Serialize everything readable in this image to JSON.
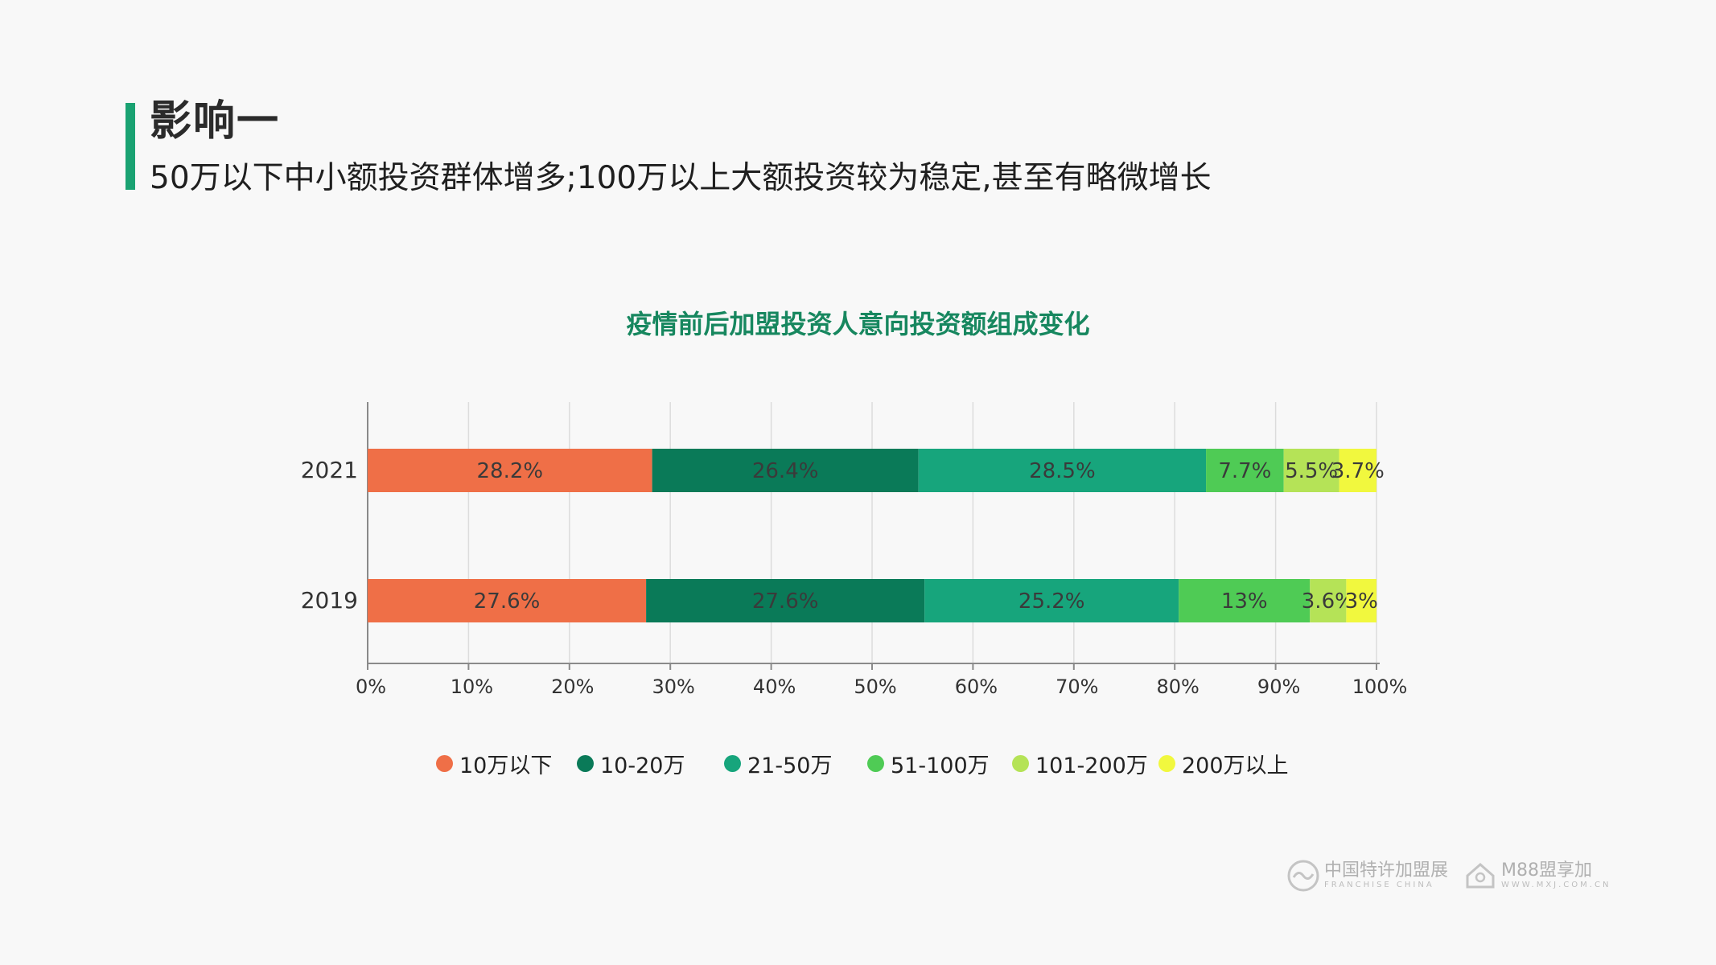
{
  "header": {
    "title": "影响一",
    "subtitle": "50万以下中小额投资群体增多;100万以上大额投资较为稳定,甚至有略微增长",
    "accent_color": "#1aa272"
  },
  "chart_data": {
    "type": "bar",
    "orientation": "horizontal",
    "stacked": true,
    "title": "疫情前后加盟投资人意向投资额组成变化",
    "title_color": "#17875f",
    "categories": [
      "2021",
      "2019"
    ],
    "series": [
      {
        "name": "10万以下",
        "color": "#ef6f47",
        "values": [
          28.2,
          27.6
        ],
        "labels": [
          "28.2%",
          "27.6%"
        ]
      },
      {
        "name": "10-20万",
        "color": "#0a7a58",
        "values": [
          26.4,
          27.6
        ],
        "labels": [
          "26.4%",
          "27.6%"
        ]
      },
      {
        "name": "21-50万",
        "color": "#17a57c",
        "values": [
          28.5,
          25.2
        ],
        "labels": [
          "28.5%",
          "25.2%"
        ]
      },
      {
        "name": "51-100万",
        "color": "#4fcb55",
        "values": [
          7.7,
          13
        ],
        "labels": [
          "7.7%",
          "13%"
        ]
      },
      {
        "name": "101-200万",
        "color": "#b5e357",
        "values": [
          5.5,
          3.6
        ],
        "labels": [
          "5.5%",
          "3.6%"
        ]
      },
      {
        "name": "200万以上",
        "color": "#f1f83e",
        "values": [
          3.7,
          3
        ],
        "labels": [
          "3.7%",
          "3%"
        ]
      }
    ],
    "x_ticks": [
      "0%",
      "10%",
      "20%",
      "30%",
      "40%",
      "50%",
      "60%",
      "70%",
      "80%",
      "90%",
      "100%"
    ],
    "xlim": [
      0,
      100
    ],
    "grid": true,
    "legend_position": "bottom"
  },
  "footer": {
    "logo1_cn": "中国特许加盟展",
    "logo1_en": "FRANCHISE CHINA",
    "logo2_cn": "M88盟享加",
    "logo2_en": "WWW.MXJ.COM.CN"
  }
}
